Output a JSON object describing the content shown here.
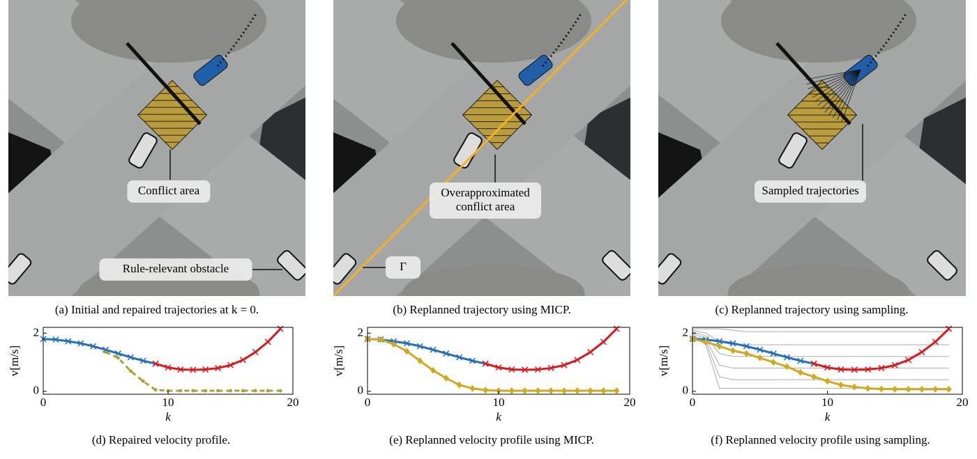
{
  "images": [
    {
      "caption": "(a) Initial and repaired trajectories at k = 0.",
      "labels": [
        {
          "lines": [
            "Conflict area"
          ]
        },
        {
          "lines": [
            "Rule-relevant obstacle"
          ]
        }
      ]
    },
    {
      "caption": "(b) Replanned trajectory using MICP.",
      "labels": [
        {
          "lines": [
            "Overapproximated",
            "conflict area"
          ]
        },
        {
          "lines": [
            "Γ"
          ]
        }
      ]
    },
    {
      "caption": "(c) Replanned trajectory using sampling.",
      "labels": [
        {
          "lines": [
            "Sampled trajectories"
          ]
        }
      ]
    }
  ],
  "chart_data": [
    {
      "type": "line",
      "caption": "(d) Repaired velocity profile.",
      "xlabel": "k",
      "ylabel": "v[m/s]",
      "x": [
        0,
        1,
        2,
        3,
        4,
        5,
        6,
        7,
        8,
        9,
        10,
        11,
        12,
        13,
        14,
        15,
        16,
        17,
        18,
        19
      ],
      "xlim": [
        0,
        20
      ],
      "xticks": [
        0,
        10,
        20
      ],
      "ylim": [
        -0.1,
        2.2
      ],
      "yticks": [
        0,
        2
      ],
      "series": [
        {
          "color": "#1f6fc0",
          "marker": "x",
          "values": [
            1.8,
            1.78,
            1.72,
            1.65,
            1.55,
            1.43,
            1.3,
            1.17,
            1.05,
            0.95,
            null,
            null,
            null,
            null,
            null,
            null,
            null,
            null,
            null,
            null
          ]
        },
        {
          "color": "#e0161b",
          "marker": "x",
          "values": [
            null,
            null,
            null,
            null,
            null,
            null,
            null,
            null,
            null,
            0.95,
            0.82,
            0.75,
            0.74,
            0.75,
            0.8,
            0.9,
            1.08,
            1.35,
            1.7,
            2.15
          ]
        },
        {
          "color": "#a9a332",
          "marker": "dot",
          "dash": true,
          "values": [
            null,
            null,
            null,
            null,
            null,
            1.35,
            1.15,
            0.7,
            0.35,
            0.05,
            0.02,
            0.02,
            0.02,
            0.02,
            0.02,
            0.02,
            0.02,
            0.02,
            0.02,
            0.02
          ]
        }
      ]
    },
    {
      "type": "line",
      "caption": "(e) Replanned velocity profile using MICP.",
      "xlabel": "k",
      "ylabel": "v[m/s]",
      "x": [
        0,
        1,
        2,
        3,
        4,
        5,
        6,
        7,
        8,
        9,
        10,
        11,
        12,
        13,
        14,
        15,
        16,
        17,
        18,
        19
      ],
      "xlim": [
        0,
        20
      ],
      "xticks": [
        0,
        10,
        20
      ],
      "ylim": [
        -0.1,
        2.2
      ],
      "yticks": [
        0,
        2
      ],
      "series": [
        {
          "color": "#1f6fc0",
          "marker": "x",
          "values": [
            1.8,
            1.78,
            1.72,
            1.65,
            1.55,
            1.43,
            1.3,
            1.17,
            1.05,
            0.95,
            null,
            null,
            null,
            null,
            null,
            null,
            null,
            null,
            null,
            null
          ]
        },
        {
          "color": "#e0161b",
          "marker": "x",
          "values": [
            null,
            null,
            null,
            null,
            null,
            null,
            null,
            null,
            null,
            0.95,
            0.82,
            0.75,
            0.74,
            0.75,
            0.8,
            0.9,
            1.08,
            1.35,
            1.7,
            2.15
          ]
        },
        {
          "color": "#d1aa1c",
          "marker": "diamond",
          "values": [
            1.8,
            1.78,
            1.62,
            1.38,
            1.05,
            0.72,
            0.45,
            0.22,
            0.1,
            0.04,
            0.02,
            0.02,
            0.02,
            0.02,
            0.02,
            0.02,
            0.02,
            0.02,
            0.02,
            0.02
          ]
        }
      ]
    },
    {
      "type": "line",
      "caption": "(f) Replanned velocity profile using sampling.",
      "xlabel": "k",
      "ylabel": "v[m/s]",
      "x": [
        0,
        1,
        2,
        3,
        4,
        5,
        6,
        7,
        8,
        9,
        10,
        11,
        12,
        13,
        14,
        15,
        16,
        17,
        18,
        19
      ],
      "xlim": [
        0,
        20
      ],
      "xticks": [
        0,
        10,
        20
      ],
      "ylim": [
        -0.1,
        2.2
      ],
      "yticks": [
        0,
        2
      ],
      "series": [
        {
          "color": "#555555",
          "values": [
            2.15,
            2.15,
            2.15,
            2.1,
            2.05,
            2.05,
            2.05,
            2.05,
            2.05,
            2.05,
            2.05,
            2.05,
            2.05,
            2.05,
            2.05,
            2.05,
            2.05,
            2.05,
            2.05,
            2.05
          ]
        },
        {
          "color": "#555555",
          "values": [
            2.1,
            2.0,
            1.7,
            1.6,
            1.6,
            1.6,
            1.6,
            1.6,
            1.6,
            1.6,
            1.6,
            1.6,
            1.6,
            1.6,
            1.6,
            1.6,
            1.6,
            1.6,
            1.6,
            1.6
          ]
        },
        {
          "color": "#555555",
          "values": [
            2.05,
            1.9,
            1.3,
            1.2,
            1.2,
            1.2,
            1.2,
            1.2,
            1.2,
            1.2,
            1.2,
            1.2,
            1.2,
            1.2,
            1.2,
            1.2,
            1.2,
            1.2,
            1.2,
            1.2
          ]
        },
        {
          "color": "#555555",
          "values": [
            2.0,
            1.8,
            0.9,
            0.8,
            0.8,
            0.8,
            0.8,
            0.8,
            0.8,
            0.8,
            0.8,
            0.8,
            0.8,
            0.8,
            0.8,
            0.8,
            0.8,
            0.8,
            0.8,
            0.8
          ]
        },
        {
          "color": "#555555",
          "values": [
            1.95,
            1.7,
            0.5,
            0.4,
            0.4,
            0.4,
            0.4,
            0.4,
            0.4,
            0.4,
            0.4,
            0.4,
            0.4,
            0.4,
            0.4,
            0.4,
            0.4,
            0.4,
            0.4,
            0.4
          ]
        },
        {
          "color": "#555555",
          "values": [
            1.9,
            1.6,
            0.1,
            0.1,
            0.1,
            0.1,
            0.1,
            0.1,
            0.1,
            0.1,
            0.1,
            0.1,
            0.1,
            0.1,
            0.1,
            0.1,
            0.1,
            0.1,
            0.1,
            0.1
          ]
        },
        {
          "color": "#1f6fc0",
          "marker": "x",
          "values": [
            1.8,
            1.78,
            1.72,
            1.65,
            1.55,
            1.43,
            1.3,
            1.17,
            1.05,
            0.95,
            null,
            null,
            null,
            null,
            null,
            null,
            null,
            null,
            null,
            null
          ]
        },
        {
          "color": "#e0161b",
          "marker": "x",
          "values": [
            null,
            null,
            null,
            null,
            null,
            null,
            null,
            null,
            null,
            0.95,
            0.82,
            0.75,
            0.74,
            0.75,
            0.8,
            0.9,
            1.08,
            1.35,
            1.7,
            2.15
          ]
        },
        {
          "color": "#d1aa1c",
          "marker": "diamond",
          "values": [
            1.8,
            1.7,
            1.55,
            1.4,
            1.3,
            1.15,
            1.0,
            0.85,
            0.65,
            0.5,
            0.35,
            0.22,
            0.15,
            0.1,
            0.08,
            0.07,
            0.07,
            0.07,
            0.07,
            0.07
          ]
        }
      ]
    }
  ]
}
